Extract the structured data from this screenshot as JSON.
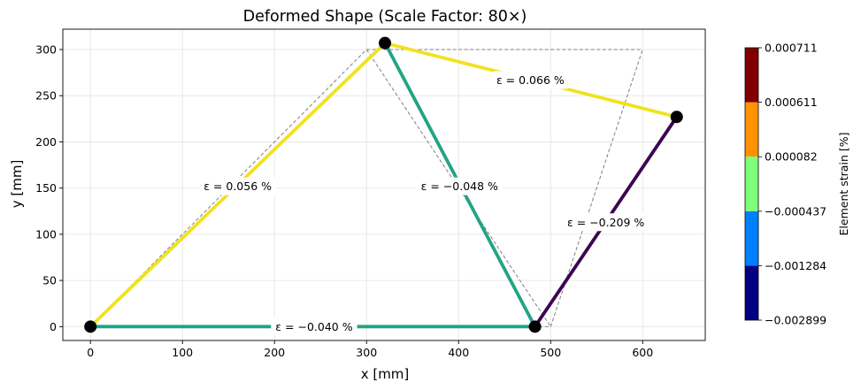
{
  "chart_data": {
    "type": "line",
    "title": "Deformed Shape (Scale Factor: 80×)",
    "xlabel": "x [mm]",
    "ylabel": "y [mm]",
    "xlim": [
      -30,
      668
    ],
    "ylim": [
      -15,
      322
    ],
    "x_ticks": [
      0,
      100,
      200,
      300,
      400,
      500,
      600
    ],
    "y_ticks": [
      0,
      50,
      100,
      150,
      200,
      250,
      300
    ],
    "grid": true,
    "undeformed_nodes": [
      [
        0,
        0
      ],
      [
        300,
        300
      ],
      [
        500,
        0
      ],
      [
        600,
        300
      ]
    ],
    "undeformed_edges": [
      [
        0,
        1
      ],
      [
        0,
        2
      ],
      [
        1,
        2
      ],
      [
        1,
        3
      ],
      [
        2,
        3
      ]
    ],
    "deformed_nodes": [
      [
        0,
        0
      ],
      [
        320,
        307
      ],
      [
        483,
        0
      ],
      [
        637,
        227
      ]
    ],
    "elements": [
      {
        "from": 0,
        "to": 1,
        "strain_label": "ε = 0.056 %",
        "color": "#f1e21f",
        "label_pos": [
          160,
          152
        ]
      },
      {
        "from": 0,
        "to": 2,
        "strain_label": "ε = −0.040 %",
        "color": "#21a484",
        "label_pos": [
          243,
          0
        ]
      },
      {
        "from": 1,
        "to": 2,
        "strain_label": "ε = −0.048 %",
        "color": "#21a484",
        "label_pos": [
          401,
          152
        ]
      },
      {
        "from": 1,
        "to": 3,
        "strain_label": "ε = 0.066 %",
        "color": "#f1e21f",
        "label_pos": [
          478,
          267
        ]
      },
      {
        "from": 2,
        "to": 3,
        "strain_label": "ε = −0.209 %",
        "color": "#3d0650",
        "label_pos": [
          560,
          113
        ]
      }
    ],
    "colorbar": {
      "label": "Element strain [%]",
      "tick_labels": [
        "−0.002899",
        "−0.001284",
        "−0.000437",
        "0.000082",
        "0.000611",
        "0.000711"
      ],
      "colors": [
        "#000080",
        "#0080ff",
        "#7dff7a",
        "#ff9400",
        "#800000"
      ]
    }
  }
}
